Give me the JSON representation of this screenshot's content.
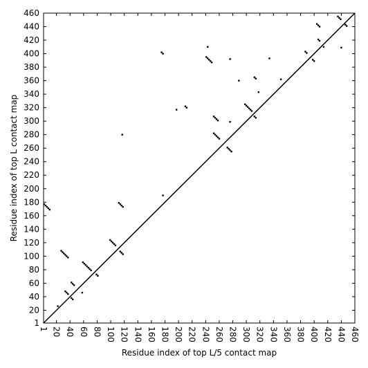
{
  "chart_data": {
    "type": "scatter",
    "xlabel": "Residue index of top L/5 contact map",
    "ylabel": "Residue index of top L contact map",
    "color": "#000000",
    "xlim": [
      1,
      460
    ],
    "ylim": [
      1,
      460
    ],
    "xticks": [
      1,
      20,
      40,
      60,
      80,
      100,
      120,
      140,
      160,
      180,
      200,
      220,
      240,
      260,
      280,
      300,
      320,
      340,
      360,
      380,
      400,
      420,
      440,
      460
    ],
    "yticks": [
      1,
      20,
      40,
      60,
      80,
      100,
      120,
      140,
      160,
      180,
      200,
      220,
      240,
      260,
      280,
      300,
      320,
      340,
      360,
      380,
      400,
      420,
      440,
      460
    ],
    "x": [
      2,
      4,
      6,
      8,
      10,
      27,
      29,
      31,
      33,
      35,
      37,
      33,
      35,
      37,
      42,
      44,
      46,
      42,
      44,
      59,
      61,
      63,
      65,
      67,
      69,
      71,
      79,
      81,
      99,
      101,
      103,
      105,
      107,
      112,
      114,
      116,
      118,
      114,
      116,
      118,
      22,
      58,
      117,
      177,
      175,
      177,
      210,
      212,
      241,
      243,
      245,
      247,
      249,
      252,
      254,
      256,
      258,
      252,
      254,
      256,
      258,
      260,
      272,
      274,
      276,
      278,
      276,
      276,
      298,
      300,
      302,
      304,
      306,
      308,
      312,
      314,
      312,
      314,
      387,
      389,
      398,
      400,
      404,
      406,
      408,
      406,
      408,
      414,
      435,
      437,
      439,
      446,
      448,
      243,
      289,
      318,
      351,
      440,
      197,
      334
    ],
    "y": [
      177,
      175,
      173,
      171,
      169,
      108,
      106,
      104,
      102,
      100,
      98,
      48,
      46,
      44,
      61,
      59,
      57,
      38,
      36,
      91,
      89,
      87,
      85,
      83,
      81,
      79,
      73,
      71,
      124,
      122,
      120,
      118,
      116,
      179,
      177,
      175,
      173,
      107,
      105,
      103,
      26,
      46,
      280,
      190,
      402,
      400,
      322,
      320,
      395,
      393,
      391,
      389,
      387,
      307,
      305,
      303,
      301,
      282,
      280,
      278,
      276,
      274,
      261,
      259,
      257,
      255,
      392,
      299,
      325,
      323,
      321,
      319,
      317,
      315,
      307,
      305,
      365,
      363,
      403,
      401,
      391,
      389,
      444,
      442,
      440,
      421,
      419,
      410,
      455,
      453,
      451,
      443,
      441,
      410,
      360,
      343,
      362,
      409,
      317,
      393
    ]
  }
}
